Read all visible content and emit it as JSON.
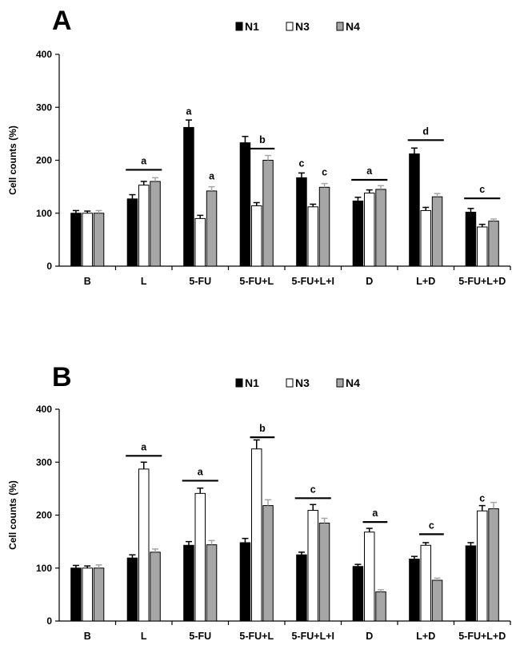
{
  "chart_data": [
    {
      "type": "bar",
      "panel": "A",
      "legend": [
        "N1",
        "N3",
        "N4"
      ],
      "ylabel": "Cell counts (%)",
      "xlabel": "",
      "ylim": [
        0,
        400
      ],
      "yticks": [
        "0",
        "100",
        "200",
        "300",
        "400"
      ],
      "categories": [
        "B",
        "L",
        "5-FU",
        "5-FU+L",
        "5-FU+L+I",
        "D",
        "L+D",
        "5-FU+L+D"
      ],
      "series": [
        {
          "name": "N1",
          "color": "#000000",
          "values": [
            100,
            127,
            262,
            233,
            167,
            123,
            212,
            102
          ],
          "errors": [
            5,
            8,
            14,
            12,
            9,
            7,
            11,
            7
          ]
        },
        {
          "name": "N3",
          "color": "#ffffff",
          "values": [
            100,
            153,
            90,
            114,
            112,
            138,
            105,
            74
          ],
          "errors": [
            4,
            7,
            6,
            6,
            5,
            6,
            6,
            5
          ]
        },
        {
          "name": "N4",
          "color": "#a6a6a6",
          "values": [
            100,
            160,
            142,
            200,
            149,
            145,
            131,
            85
          ],
          "errors": [
            5,
            7,
            8,
            9,
            7,
            7,
            6,
            4
          ]
        }
      ],
      "significance": [
        {
          "label": "a",
          "category": 1,
          "series": "all",
          "line": true,
          "value": 182
        },
        {
          "label": "a",
          "category": 2,
          "series": "N1",
          "line": false,
          "value": 286
        },
        {
          "label": "a",
          "category": 2,
          "series": "N4",
          "line": false,
          "value": 164
        },
        {
          "label": "b",
          "category": 3,
          "series": "N3-N4",
          "line": true,
          "value": 222
        },
        {
          "label": "c",
          "category": 4,
          "series": "N1",
          "line": false,
          "value": 188
        },
        {
          "label": "c",
          "category": 4,
          "series": "N4",
          "line": false,
          "value": 171
        },
        {
          "label": "a",
          "category": 5,
          "series": "all",
          "line": true,
          "value": 163
        },
        {
          "label": "d",
          "category": 6,
          "series": "all",
          "line": true,
          "value": 238
        },
        {
          "label": "c",
          "category": 7,
          "series": "all",
          "line": true,
          "value": 128
        }
      ]
    },
    {
      "type": "bar",
      "panel": "B",
      "legend": [
        "N1",
        "N3",
        "N4"
      ],
      "ylabel": "Cell counts (%)",
      "xlabel": "",
      "ylim": [
        0,
        400
      ],
      "yticks": [
        "0",
        "100",
        "200",
        "300",
        "400"
      ],
      "categories": [
        "B",
        "L",
        "5-FU",
        "5-FU+L",
        "5-FU+L+I",
        "D",
        "L+D",
        "5-FU+L+D"
      ],
      "series": [
        {
          "name": "N1",
          "color": "#000000",
          "values": [
            100,
            119,
            143,
            148,
            125,
            103,
            117,
            142
          ],
          "errors": [
            5,
            6,
            7,
            8,
            5,
            4,
            5,
            6
          ]
        },
        {
          "name": "N3",
          "color": "#ffffff",
          "values": [
            100,
            287,
            241,
            325,
            209,
            168,
            143,
            208
          ],
          "errors": [
            4,
            13,
            10,
            17,
            11,
            7,
            5,
            10
          ]
        },
        {
          "name": "N4",
          "color": "#a6a6a6",
          "values": [
            100,
            130,
            144,
            218,
            185,
            55,
            77,
            212
          ],
          "errors": [
            6,
            6,
            8,
            11,
            9,
            4,
            4,
            12
          ]
        }
      ],
      "significance": [
        {
          "label": "a",
          "category": 1,
          "series": "all",
          "line": true,
          "value": 312
        },
        {
          "label": "a",
          "category": 2,
          "series": "all",
          "line": true,
          "value": 265
        },
        {
          "label": "b",
          "category": 3,
          "series": "N3-N4",
          "line": true,
          "value": 347
        },
        {
          "label": "c",
          "category": 4,
          "series": "all",
          "line": true,
          "value": 232
        },
        {
          "label": "a",
          "category": 5,
          "series": "N3-N4",
          "line": true,
          "value": 187
        },
        {
          "label": "c",
          "category": 6,
          "series": "N3-N4",
          "line": true,
          "value": 164
        },
        {
          "label": "c",
          "category": 7,
          "series": "N3",
          "line": false,
          "value": 226
        }
      ]
    }
  ]
}
